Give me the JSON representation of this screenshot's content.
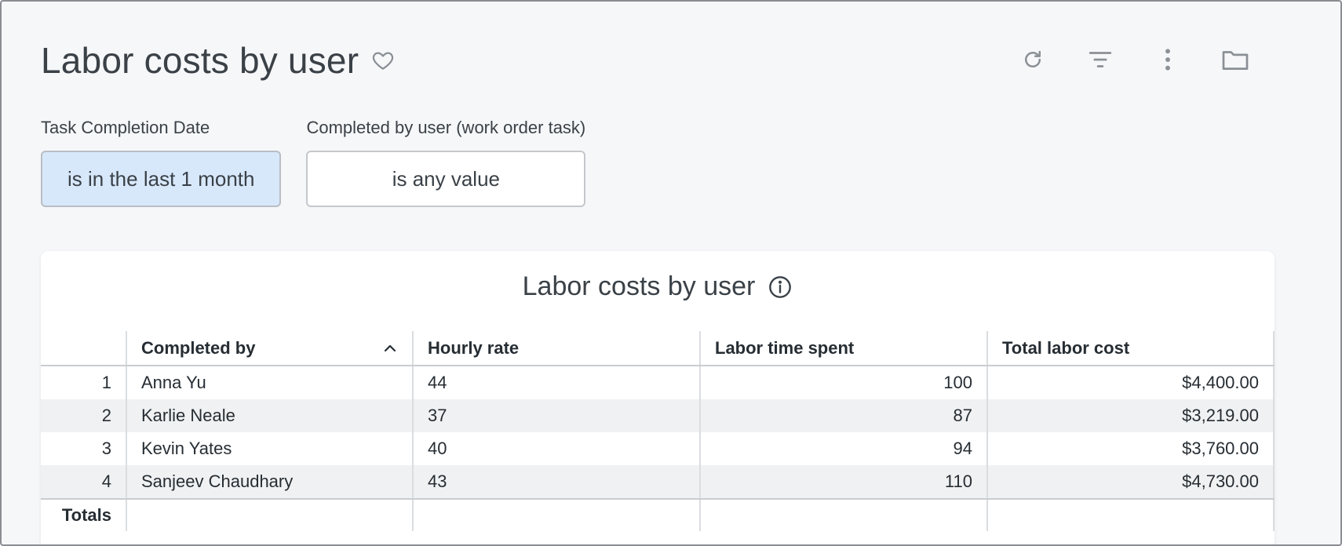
{
  "header": {
    "title": "Labor costs by user",
    "favorite_icon": "heart-icon",
    "toolbar": [
      {
        "name": "refresh-icon"
      },
      {
        "name": "filter-icon"
      },
      {
        "name": "more-vertical-icon"
      },
      {
        "name": "folder-icon"
      }
    ]
  },
  "filters": [
    {
      "label": "Task Completion Date",
      "value": "is in the last 1 month",
      "active": true
    },
    {
      "label": "Completed by user (work order task)",
      "value": "is any value",
      "active": false
    }
  ],
  "card": {
    "title": "Labor costs by user",
    "info_icon": "info-icon"
  },
  "table": {
    "columns": [
      "Completed by",
      "Hourly rate",
      "Labor time spent",
      "Total labor cost"
    ],
    "sort": {
      "column": "Completed by",
      "direction": "ascending"
    },
    "rows": [
      {
        "index": "1",
        "name": "Anna Yu",
        "rate": "44",
        "time": "100",
        "cost": "$4,400.00"
      },
      {
        "index": "2",
        "name": "Karlie Neale",
        "rate": "37",
        "time": "87",
        "cost": "$3,219.00"
      },
      {
        "index": "3",
        "name": "Kevin Yates",
        "rate": "40",
        "time": "94",
        "cost": "$3,760.00"
      },
      {
        "index": "4",
        "name": "Sanjeev Chaudhary",
        "rate": "43",
        "time": "110",
        "cost": "$4,730.00"
      }
    ],
    "totals_label": "Totals"
  },
  "colors": {
    "active_chip": "#d8e8fb",
    "stripe": "#f0f1f2",
    "icon": "#8a9096"
  }
}
